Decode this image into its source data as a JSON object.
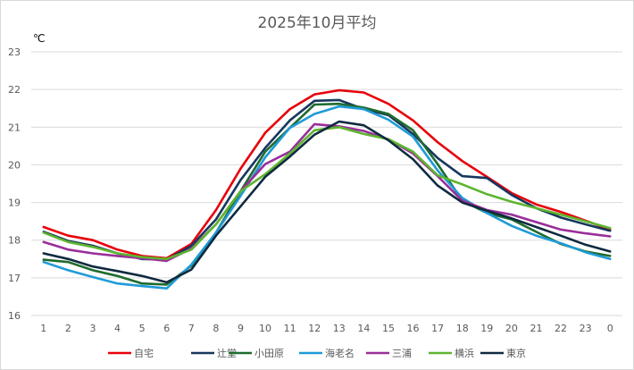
{
  "chart_data": {
    "type": "line",
    "title": "2025年10月平均",
    "ylabel": "℃",
    "xlabel": "",
    "ylim": [
      16,
      23
    ],
    "yticks": [
      16,
      17,
      18,
      19,
      20,
      21,
      22,
      23
    ],
    "categories": [
      "1",
      "2",
      "3",
      "4",
      "5",
      "6",
      "7",
      "8",
      "9",
      "10",
      "11",
      "12",
      "13",
      "14",
      "15",
      "16",
      "17",
      "18",
      "19",
      "20",
      "21",
      "22",
      "23",
      "0"
    ],
    "grid": true,
    "legend": "bottom",
    "series": [
      {
        "name": "自宅",
        "color": "#e8000b",
        "values": [
          18.35,
          18.12,
          18.0,
          17.75,
          17.58,
          17.52,
          17.9,
          18.8,
          19.9,
          20.85,
          21.48,
          21.87,
          21.98,
          21.92,
          21.62,
          21.18,
          20.6,
          20.1,
          19.68,
          19.25,
          18.95,
          18.75,
          18.52,
          18.28
        ]
      },
      {
        "name": "辻堂",
        "color": "#17375e",
        "values": [
          18.22,
          17.98,
          17.85,
          17.65,
          17.5,
          17.48,
          17.85,
          18.55,
          19.6,
          20.45,
          21.18,
          21.7,
          21.72,
          21.48,
          21.32,
          20.82,
          20.18,
          19.7,
          19.65,
          19.2,
          18.85,
          18.6,
          18.42,
          18.25
        ]
      },
      {
        "name": "小田原",
        "color": "#1e6b2e",
        "values": [
          17.48,
          17.42,
          17.2,
          17.05,
          16.85,
          16.82,
          17.32,
          18.2,
          19.3,
          20.35,
          20.98,
          21.6,
          21.62,
          21.52,
          21.35,
          20.92,
          20.02,
          19.05,
          18.72,
          18.55,
          18.22,
          17.9,
          17.7,
          17.58
        ]
      },
      {
        "name": "海老名",
        "color": "#1f9bd7",
        "values": [
          17.42,
          17.2,
          17.02,
          16.85,
          16.78,
          16.72,
          17.35,
          18.2,
          19.18,
          20.2,
          20.98,
          21.35,
          21.55,
          21.48,
          21.2,
          20.75,
          19.85,
          19.12,
          18.72,
          18.38,
          18.12,
          17.92,
          17.68,
          17.5
        ]
      },
      {
        "name": "三浦",
        "color": "#9a2e9a",
        "values": [
          17.95,
          17.75,
          17.65,
          17.58,
          17.52,
          17.45,
          17.78,
          18.42,
          19.3,
          20.02,
          20.35,
          21.08,
          21.02,
          20.9,
          20.68,
          20.3,
          19.7,
          19.05,
          18.8,
          18.68,
          18.48,
          18.28,
          18.18,
          18.1
        ]
      },
      {
        "name": "横浜",
        "color": "#5db52e",
        "values": [
          18.2,
          17.95,
          17.82,
          17.65,
          17.55,
          17.5,
          17.75,
          18.42,
          19.3,
          19.75,
          20.3,
          20.92,
          21.0,
          20.82,
          20.68,
          20.35,
          19.72,
          19.48,
          19.22,
          19.02,
          18.85,
          18.68,
          18.5,
          18.32
        ]
      },
      {
        "name": "東京",
        "color": "#0f2a40",
        "values": [
          17.65,
          17.5,
          17.3,
          17.18,
          17.05,
          16.88,
          17.22,
          18.12,
          18.9,
          19.68,
          20.22,
          20.8,
          21.15,
          21.05,
          20.65,
          20.15,
          19.45,
          19.0,
          18.78,
          18.58,
          18.35,
          18.12,
          17.88,
          17.7
        ]
      }
    ]
  }
}
